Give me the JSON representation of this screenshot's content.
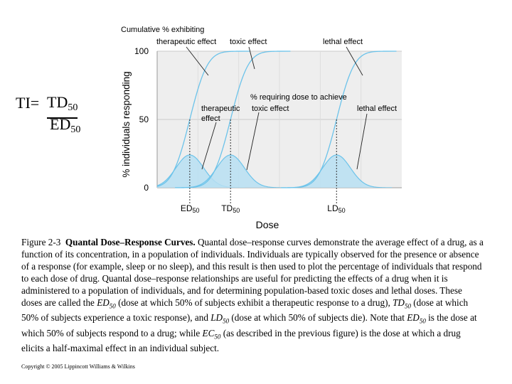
{
  "formula": {
    "prefix": "TI=",
    "numerator": "TD",
    "numerator_sub": "50",
    "denominator": "ED",
    "denominator_sub": "50"
  },
  "chart_data": {
    "type": "line",
    "ylabel": "% individuals responding",
    "xlabel": "Dose",
    "ylim": [
      0,
      100
    ],
    "yticks": [
      0,
      50,
      100
    ],
    "grid": true,
    "header": "Cumulative % exhibiting",
    "cumulative_labels": [
      "therapeutic effect",
      "toxic effect",
      "lethal effect"
    ],
    "annotation_header": "% requiring dose to achieve",
    "distribution_labels": [
      {
        "line1": "therapeutic",
        "line2": "effect"
      },
      {
        "line1": "toxic effect",
        "line2": ""
      },
      {
        "line1": "lethal effect",
        "line2": ""
      }
    ],
    "markers": [
      {
        "name": "ED",
        "sub": "50",
        "x": 2.0
      },
      {
        "name": "TD",
        "sub": "50",
        "x": 4.5
      },
      {
        "name": "LD",
        "sub": "50",
        "x": 11.0
      }
    ],
    "xlim": [
      0,
      15
    ],
    "distribution_peak": 24,
    "series": [
      {
        "name": "therapeutic effect",
        "mean": 2.0,
        "sd": 0.85
      },
      {
        "name": "toxic effect",
        "mean": 4.5,
        "sd": 0.85
      },
      {
        "name": "lethal effect",
        "mean": 11.0,
        "sd": 0.85
      }
    ],
    "colors": {
      "curve": "#6cc3ea",
      "fill": "#b7dff2",
      "plot_bg": "#eeeeee"
    }
  },
  "caption": {
    "figure_label": "Figure 2-3",
    "title": "Quantal Dose–Response Curves.",
    "segments": [
      {
        "t": " Quantal dose–response curves demonstrate the average effect of a drug, as a function of its concentration, in a population of individuals. Individuals are typically observed for the presence or absence of a response (for example, sleep or no sleep), and this result is then used to plot the percentage of individuals that respond to each dose of drug. Quantal dose–response relationships are useful for predicting the effects of a drug when it is administered to a population of individuals, and for determining population-based toxic doses and lethal doses. These doses are called the "
      },
      {
        "t": "ED",
        "i": true
      },
      {
        "t": "50",
        "i": true,
        "sub": true
      },
      {
        "t": " (dose at which 50% of subjects exhibit a therapeutic response to a drug), "
      },
      {
        "t": "TD",
        "i": true
      },
      {
        "t": "50",
        "i": true,
        "sub": true
      },
      {
        "t": " (dose at which 50% of subjects experience a toxic response), and "
      },
      {
        "t": "LD",
        "i": true
      },
      {
        "t": "50",
        "i": true,
        "sub": true
      },
      {
        "t": " (dose at which 50% of subjects die). Note that "
      },
      {
        "t": "ED",
        "i": true
      },
      {
        "t": "50",
        "i": true,
        "sub": true
      },
      {
        "t": " is the dose at which 50% of subjects respond to a drug; while "
      },
      {
        "t": "EC",
        "i": true
      },
      {
        "t": "50",
        "i": true,
        "sub": true
      },
      {
        "t": " (as described in the previous figure) is the dose at which a drug elicits a half-maximal effect in an individual subject."
      }
    ]
  },
  "copyright": "Copyright ©  2005 Lippincott Williams & Wilkins"
}
